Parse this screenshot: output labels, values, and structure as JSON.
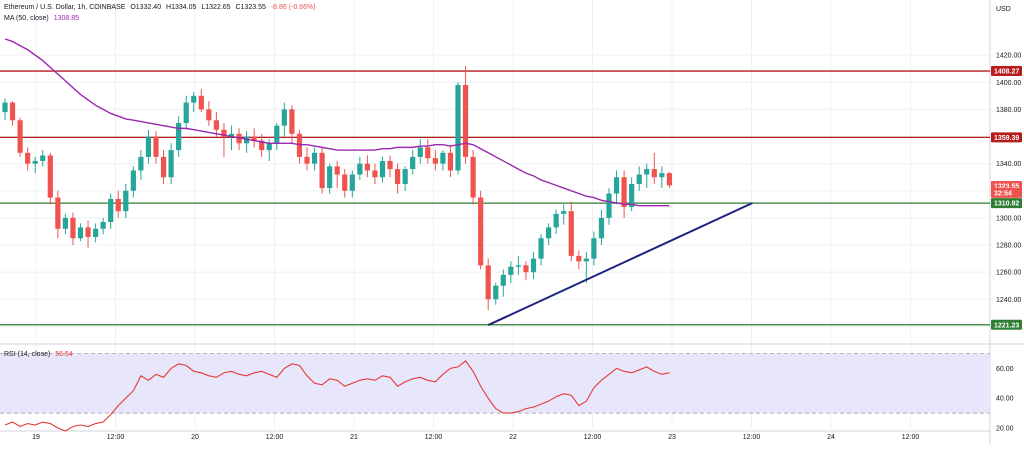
{
  "header": {
    "symbol": "Ethereum / U.S. Dollar, 1h, COINBASE",
    "open": "O1332.40",
    "high": "H1334.05",
    "low": "L1322.65",
    "close": "C1323.55",
    "change": "-8.86 (-0.66%)",
    "ma_label": "MA (50, close)",
    "ma_value": "1308.85",
    "rsi_label": "RSI (14, close)",
    "rsi_value": "56.54",
    "currency": "USD"
  },
  "colors": {
    "up": "#26a69a",
    "down": "#ef5350",
    "ma": "#9c27b0",
    "resistance": "#b71c1c",
    "support": "#2e7d32",
    "trendline": "#1a237e",
    "rsi_line": "#e53935",
    "rsi_band": "#e8e6fb",
    "price_tag": "#ef5350"
  },
  "chart_data": [
    {
      "type": "candlestick",
      "ylim": [
        1210,
        1440
      ],
      "y_ticks": [
        1220,
        1240,
        1260,
        1280,
        1300,
        1320,
        1340,
        1360,
        1380,
        1400,
        1420
      ],
      "x_labels": [
        "19",
        "12:00",
        "20",
        "12:00",
        "21",
        "12:00",
        "22",
        "12:00",
        "23",
        "12:00",
        "24",
        "12:00"
      ],
      "ohlc": [
        [
          1378,
          1388,
          1372,
          1385
        ],
        [
          1385,
          1386,
          1368,
          1372
        ],
        [
          1372,
          1374,
          1345,
          1348
        ],
        [
          1348,
          1352,
          1335,
          1340
        ],
        [
          1340,
          1345,
          1333,
          1342
        ],
        [
          1342,
          1350,
          1338,
          1346
        ],
        [
          1346,
          1348,
          1310,
          1315
        ],
        [
          1315,
          1320,
          1285,
          1292
        ],
        [
          1292,
          1303,
          1288,
          1300
        ],
        [
          1300,
          1304,
          1280,
          1285
        ],
        [
          1285,
          1296,
          1283,
          1293
        ],
        [
          1293,
          1298,
          1278,
          1286
        ],
        [
          1286,
          1296,
          1282,
          1292
        ],
        [
          1292,
          1300,
          1288,
          1297
        ],
        [
          1297,
          1318,
          1292,
          1314
        ],
        [
          1314,
          1320,
          1300,
          1305
        ],
        [
          1305,
          1325,
          1300,
          1320
        ],
        [
          1320,
          1338,
          1315,
          1335
        ],
        [
          1335,
          1350,
          1328,
          1345
        ],
        [
          1345,
          1365,
          1340,
          1360
        ],
        [
          1360,
          1364,
          1340,
          1345
        ],
        [
          1345,
          1350,
          1325,
          1330
        ],
        [
          1330,
          1355,
          1325,
          1350
        ],
        [
          1350,
          1375,
          1345,
          1370
        ],
        [
          1370,
          1390,
          1365,
          1385
        ],
        [
          1385,
          1393,
          1378,
          1390
        ],
        [
          1390,
          1395,
          1378,
          1380
        ],
        [
          1380,
          1386,
          1368,
          1372
        ],
        [
          1372,
          1378,
          1360,
          1365
        ],
        [
          1365,
          1370,
          1345,
          1360
        ],
        [
          1360,
          1368,
          1350,
          1362
        ],
        [
          1362,
          1366,
          1350,
          1355
        ],
        [
          1355,
          1364,
          1348,
          1360
        ],
        [
          1360,
          1366,
          1352,
          1357
        ],
        [
          1357,
          1362,
          1345,
          1350
        ],
        [
          1350,
          1358,
          1342,
          1355
        ],
        [
          1355,
          1370,
          1350,
          1368
        ],
        [
          1368,
          1385,
          1360,
          1380
        ],
        [
          1380,
          1383,
          1355,
          1362
        ],
        [
          1362,
          1365,
          1340,
          1345
        ],
        [
          1345,
          1352,
          1335,
          1340
        ],
        [
          1340,
          1352,
          1335,
          1348
        ],
        [
          1348,
          1352,
          1318,
          1322
        ],
        [
          1322,
          1340,
          1318,
          1338
        ],
        [
          1338,
          1342,
          1322,
          1332
        ],
        [
          1332,
          1336,
          1315,
          1320
        ],
        [
          1320,
          1335,
          1315,
          1332
        ],
        [
          1332,
          1345,
          1328,
          1340
        ],
        [
          1340,
          1346,
          1330,
          1335
        ],
        [
          1335,
          1340,
          1325,
          1330
        ],
        [
          1330,
          1345,
          1326,
          1342
        ],
        [
          1342,
          1346,
          1330,
          1336
        ],
        [
          1336,
          1340,
          1318,
          1325
        ],
        [
          1325,
          1338,
          1320,
          1336
        ],
        [
          1336,
          1350,
          1332,
          1345
        ],
        [
          1345,
          1358,
          1340,
          1352
        ],
        [
          1352,
          1358,
          1340,
          1344
        ],
        [
          1344,
          1350,
          1335,
          1340
        ],
        [
          1340,
          1350,
          1335,
          1348
        ],
        [
          1348,
          1354,
          1330,
          1335
        ],
        [
          1335,
          1400,
          1332,
          1398
        ],
        [
          1398,
          1412,
          1340,
          1345
        ],
        [
          1345,
          1350,
          1310,
          1315
        ],
        [
          1315,
          1320,
          1262,
          1265
        ],
        [
          1265,
          1270,
          1232,
          1240
        ],
        [
          1240,
          1252,
          1236,
          1250
        ],
        [
          1250,
          1262,
          1242,
          1258
        ],
        [
          1258,
          1268,
          1252,
          1264
        ],
        [
          1264,
          1272,
          1258,
          1265
        ],
        [
          1265,
          1268,
          1254,
          1260
        ],
        [
          1260,
          1275,
          1255,
          1270
        ],
        [
          1270,
          1288,
          1265,
          1285
        ],
        [
          1285,
          1296,
          1280,
          1293
        ],
        [
          1293,
          1306,
          1288,
          1303
        ],
        [
          1303,
          1310,
          1295,
          1305
        ],
        [
          1305,
          1312,
          1268,
          1272
        ],
        [
          1272,
          1276,
          1262,
          1268
        ],
        [
          1268,
          1275,
          1252,
          1270
        ],
        [
          1270,
          1290,
          1265,
          1285
        ],
        [
          1285,
          1306,
          1280,
          1300
        ],
        [
          1300,
          1322,
          1295,
          1318
        ],
        [
          1318,
          1335,
          1310,
          1330
        ],
        [
          1330,
          1335,
          1300,
          1308
        ],
        [
          1308,
          1330,
          1305,
          1325
        ],
        [
          1325,
          1338,
          1320,
          1332
        ],
        [
          1332,
          1340,
          1322,
          1336
        ],
        [
          1336,
          1348,
          1325,
          1330
        ],
        [
          1330,
          1338,
          1322,
          1333
        ],
        [
          1333,
          1334,
          1322,
          1324
        ]
      ],
      "ma_values": [
        1432,
        1430,
        1427,
        1424,
        1420,
        1416,
        1411,
        1406,
        1401,
        1396,
        1391,
        1387,
        1383,
        1380,
        1377,
        1375,
        1373,
        1372,
        1371,
        1370,
        1369,
        1368,
        1367,
        1366,
        1366,
        1365,
        1364,
        1363,
        1362,
        1361,
        1360,
        1359,
        1358,
        1357,
        1356,
        1355,
        1355,
        1355,
        1355,
        1354,
        1354,
        1353,
        1352,
        1351,
        1350,
        1350,
        1350,
        1350,
        1350,
        1350,
        1351,
        1351,
        1352,
        1352,
        1352,
        1353,
        1353,
        1354,
        1354,
        1353,
        1354,
        1355,
        1354,
        1351,
        1348,
        1345,
        1342,
        1339,
        1336,
        1333,
        1331,
        1328,
        1326,
        1324,
        1322,
        1320,
        1318,
        1316,
        1315,
        1313,
        1312,
        1311,
        1310,
        1310,
        1309,
        1309,
        1309,
        1309,
        1309
      ],
      "resistance_levels": [
        1408.27,
        1359.39
      ],
      "support_levels": [
        1310.92,
        1221.23
      ],
      "trendline": [
        [
          64,
          1221
        ],
        [
          99,
          1311
        ]
      ],
      "price_tags": [
        {
          "label": "1408.27",
          "price": 1408.27,
          "kind": "resistance"
        },
        {
          "label": "1359.39",
          "price": 1359.39,
          "kind": "resistance"
        },
        {
          "label": "1323.55",
          "price": 1323.55,
          "kind": "last"
        },
        {
          "label": "32:54",
          "price": 1318.5,
          "kind": "timer"
        },
        {
          "label": "1310.92",
          "price": 1310.92,
          "kind": "support"
        },
        {
          "label": "1221.23",
          "price": 1221.23,
          "kind": "support"
        }
      ]
    },
    {
      "type": "line",
      "name": "RSI (14, close)",
      "ylim": [
        20,
        75
      ],
      "y_ticks": [
        20,
        40,
        60
      ],
      "band": [
        30,
        70
      ],
      "values": [
        22,
        24,
        21,
        23,
        22,
        24,
        23,
        20,
        18,
        21,
        22,
        21,
        23,
        24,
        29,
        35,
        40,
        45,
        55,
        52,
        56,
        54,
        60,
        63,
        62,
        58,
        57,
        55,
        54,
        57,
        58,
        56,
        55,
        57,
        58,
        56,
        54,
        60,
        63,
        62,
        55,
        50,
        49,
        53,
        52,
        48,
        50,
        52,
        53,
        52,
        55,
        54,
        48,
        51,
        53,
        54,
        52,
        51,
        56,
        60,
        61,
        65,
        58,
        48,
        40,
        33,
        30,
        30,
        31,
        33,
        34,
        36,
        38,
        41,
        43,
        42,
        35,
        38,
        47,
        52,
        56,
        60,
        58,
        57,
        59,
        61,
        58,
        56,
        57
      ]
    }
  ]
}
